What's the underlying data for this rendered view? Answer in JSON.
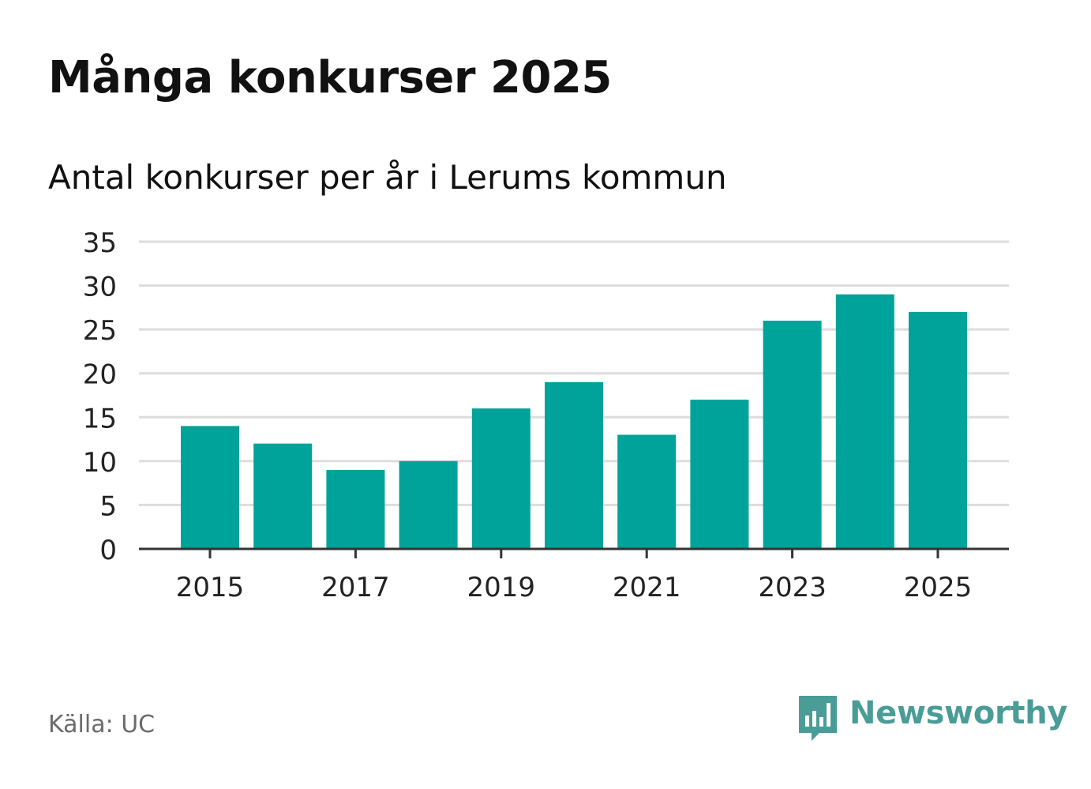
{
  "title": "Många konkurser 2025",
  "subtitle": "Antal konkurser per år i Lerums kommun",
  "source": "Källa: UC",
  "brand": "Newsworthy",
  "colors": {
    "bar": "#00a399",
    "grid": "#dddddd",
    "axis": "#333333",
    "tick_text": "#222222",
    "brand": "#4a9c97"
  },
  "chart_data": {
    "type": "bar",
    "title": "Många konkurser 2025",
    "subtitle": "Antal konkurser per år i Lerums kommun",
    "xlabel": "",
    "ylabel": "",
    "categories": [
      "2015",
      "2016",
      "2017",
      "2018",
      "2019",
      "2020",
      "2021",
      "2022",
      "2023",
      "2024",
      "2025"
    ],
    "values": [
      14,
      12,
      9,
      10,
      16,
      19,
      13,
      17,
      26,
      29,
      27
    ],
    "ylim": [
      0,
      35
    ],
    "yticks": [
      0,
      5,
      10,
      15,
      20,
      25,
      30,
      35
    ],
    "xtick_labels": [
      "2015",
      "2017",
      "2019",
      "2021",
      "2023",
      "2025"
    ],
    "grid": true,
    "legend": "none"
  }
}
